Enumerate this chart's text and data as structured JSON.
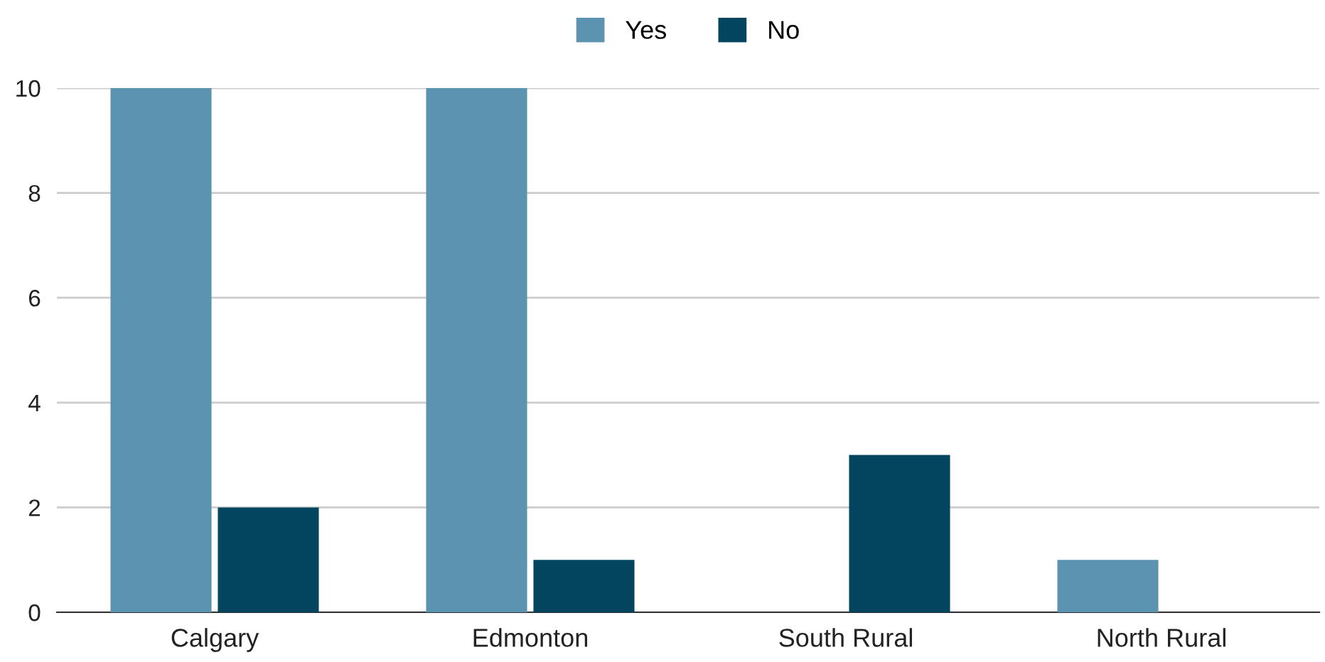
{
  "chart_data": {
    "type": "bar",
    "categories": [
      "Calgary",
      "Edmonton",
      "South Rural",
      "North Rural"
    ],
    "series": [
      {
        "name": "Yes",
        "color": "#5b93b1",
        "values": [
          10,
          10,
          0,
          1
        ]
      },
      {
        "name": "No",
        "color": "#03445f",
        "values": [
          2,
          1,
          3,
          0
        ]
      }
    ],
    "ylim": [
      0,
      10
    ],
    "yticks": [
      0,
      2,
      4,
      6,
      8,
      10
    ],
    "grid": "y",
    "legend": "top"
  }
}
